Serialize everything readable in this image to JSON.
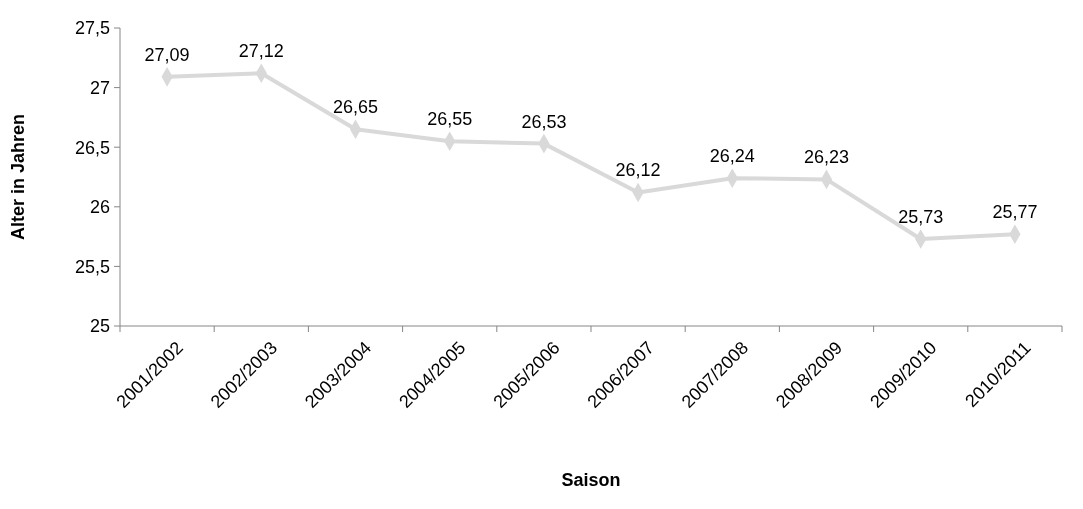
{
  "chart_data": {
    "type": "line",
    "xlabel": "Saison",
    "ylabel": "Alter in Jahren",
    "categories": [
      "2001/2002",
      "2002/2003",
      "2003/2004",
      "2004/2005",
      "2005/2006",
      "2006/2007",
      "2007/2008",
      "2008/2009",
      "2009/2010",
      "2010/2011"
    ],
    "series": [
      {
        "color": "#d9d9d9",
        "values": [
          27.09,
          27.12,
          26.65,
          26.55,
          26.53,
          26.12,
          26.24,
          26.23,
          25.73,
          25.77
        ],
        "value_labels": [
          "27,09",
          "27,12",
          "26,65",
          "26,55",
          "26,53",
          "26,12",
          "26,24",
          "26,23",
          "25,73",
          "25,77"
        ]
      }
    ],
    "ylim": [
      25,
      27.5
    ],
    "yticks": [
      25,
      {
        "value": 25.5,
        "label": "25,5"
      },
      26,
      {
        "value": 26.5,
        "label": "26,5"
      },
      27,
      {
        "value": 27.5,
        "label": "27,5"
      }
    ],
    "marker": "diamond",
    "line_style": "solid",
    "grid": false
  }
}
